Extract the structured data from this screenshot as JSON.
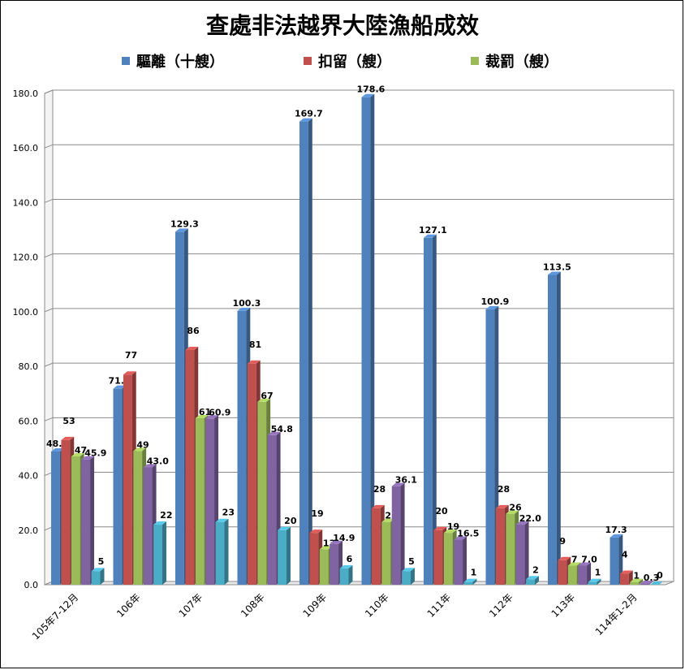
{
  "chart_data": {
    "type": "bar",
    "title": "查處非法越界大陸漁船成效",
    "categories": [
      "105年7-12月",
      "106年",
      "107年",
      "108年",
      "109年",
      "110年",
      "111年",
      "112年",
      "113年",
      "114年1-2月"
    ],
    "ylim": [
      0,
      180
    ],
    "yticks": [
      "0.0",
      "20.0",
      "40.0",
      "60.0",
      "80.0",
      "100.0",
      "120.0",
      "140.0",
      "160.0",
      "180.0"
    ],
    "grid": true,
    "legend_position": "top",
    "series": [
      {
        "name": "驅離（十艘）",
        "color": "#4F81BD",
        "values": [
          48.8,
          71.8,
          129.3,
          100.3,
          169.7,
          178.6,
          127.1,
          100.9,
          113.5,
          17.3
        ],
        "labels": [
          "48.8",
          "71.8",
          "129.3",
          "100.3",
          "169.7",
          "178.6",
          "127.1",
          "100.9",
          "113.5",
          "17.3"
        ]
      },
      {
        "name": "扣留（艘）",
        "color": "#C0504D",
        "values": [
          53,
          77,
          86,
          81,
          19,
          28,
          20,
          28,
          9,
          4
        ],
        "labels": [
          "53",
          "77",
          "86",
          "81",
          "19",
          "28",
          "20",
          "28",
          "9",
          "4"
        ]
      },
      {
        "name": "裁罰（艘）",
        "color": "#9BBB59",
        "values": [
          47,
          49,
          61,
          67,
          13,
          23,
          19,
          26,
          7,
          1
        ],
        "labels": [
          "47",
          "49",
          "61",
          "67",
          "13",
          "23",
          "19",
          "26",
          "7",
          "1"
        ]
      },
      {
        "name": "",
        "color": "#8064A2",
        "values": [
          45.9,
          43.0,
          60.9,
          54.8,
          14.9,
          36.1,
          16.5,
          22.0,
          7.0,
          0.3
        ],
        "labels": [
          "45.9",
          "43.0",
          "60.9",
          "54.8",
          "14.9",
          "36.1",
          "16.5",
          "22.0",
          "7.0",
          "0.3"
        ]
      },
      {
        "name": "",
        "color": "#4BACC6",
        "values": [
          5,
          22,
          23,
          20,
          6,
          5,
          1,
          2,
          1,
          0
        ],
        "labels": [
          "5",
          "22",
          "23",
          "20",
          "6",
          "5",
          "1",
          "2",
          "1",
          "0"
        ]
      }
    ]
  }
}
